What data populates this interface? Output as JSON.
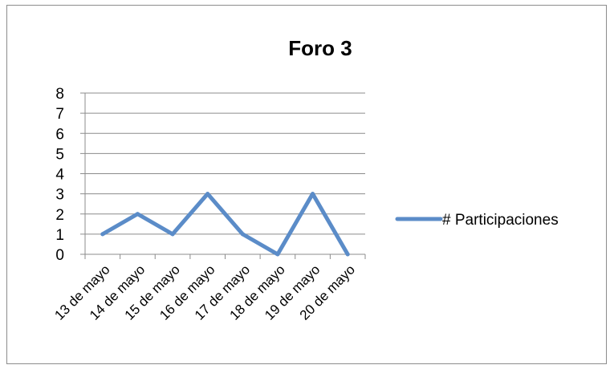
{
  "chart_data": {
    "type": "line",
    "title": "Foro 3",
    "xlabel": "",
    "ylabel": "",
    "categories": [
      "13 de mayo",
      "14 de mayo",
      "15 de mayo",
      "16 de mayo",
      "17 de mayo",
      "18 de mayo",
      "19 de mayo",
      "20 de mayo"
    ],
    "series": [
      {
        "name": "# Participaciones",
        "values": [
          1,
          2,
          1,
          3,
          1,
          0,
          3,
          0
        ],
        "color": "#5b8cc8"
      }
    ],
    "ylim": [
      0,
      8
    ],
    "yticks": [
      0,
      1,
      2,
      3,
      4,
      5,
      6,
      7,
      8
    ],
    "grid": true,
    "legend_position": "right"
  }
}
